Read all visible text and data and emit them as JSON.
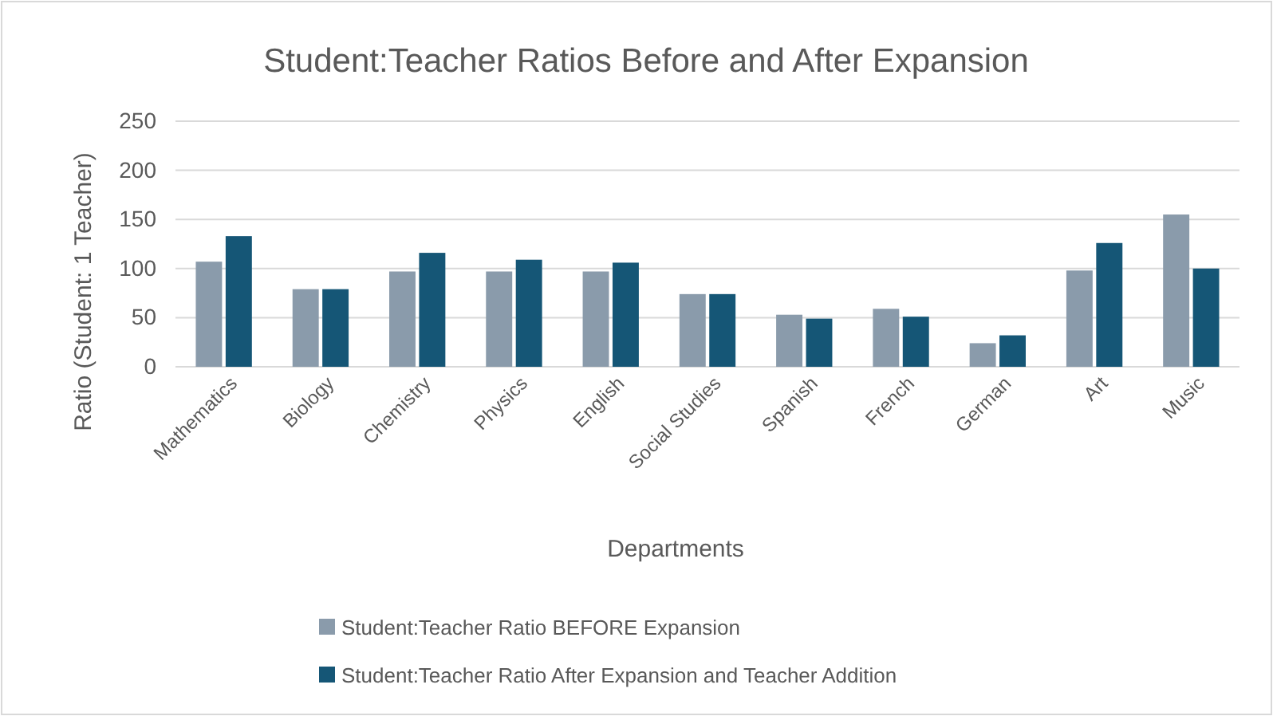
{
  "chart_data": {
    "type": "bar",
    "title": "Student:Teacher Ratios Before and After Expansion",
    "xlabel": "Departments",
    "ylabel": "Ratio (Student: 1 Teacher)",
    "categories": [
      "Mathematics",
      "Biology",
      "Chemistry",
      "Physics",
      "English",
      "Social Studies",
      "Spanish",
      "French",
      "German",
      "Art",
      "Music"
    ],
    "series": [
      {
        "name": "Student:Teacher Ratio BEFORE Expansion",
        "color": "#8a9bab",
        "values": [
          107,
          79,
          97,
          97,
          97,
          74,
          53,
          59,
          24,
          98,
          155
        ]
      },
      {
        "name": "Student:Teacher Ratio After Expansion and Teacher Addition",
        "color": "#155676",
        "values": [
          133,
          79,
          116,
          109,
          106,
          74,
          49,
          51,
          32,
          126,
          100
        ]
      }
    ],
    "ylim": [
      0,
      250
    ],
    "yticks": [
      0,
      50,
      100,
      150,
      200,
      250
    ],
    "grid": "y",
    "legend": "bottom"
  }
}
